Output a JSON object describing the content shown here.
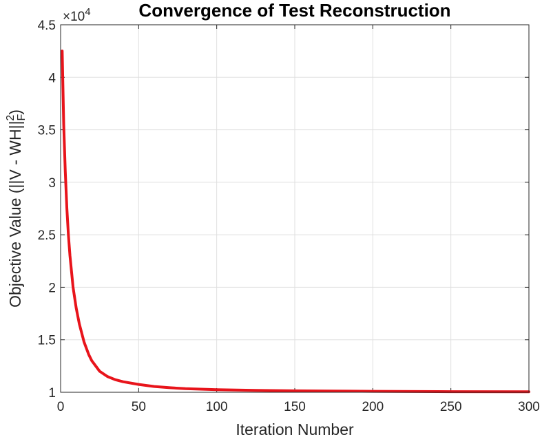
{
  "chart_data": {
    "type": "line",
    "title": "Convergence of Test Reconstruction",
    "xlabel": "Iteration Number",
    "ylabel": "Objective Value (||V - WH||",
    "ylabel_sub": "F",
    "ylabel_sup": "2",
    "ylabel_close": ")",
    "y_exponent_base": "×10",
    "y_exponent_power": "4",
    "xlim": [
      0,
      300
    ],
    "ylim": [
      10000,
      45000
    ],
    "x_ticks": [
      0,
      50,
      100,
      150,
      200,
      250,
      300
    ],
    "x_tick_labels": [
      "0",
      "50",
      "100",
      "150",
      "200",
      "250",
      "300"
    ],
    "y_ticks": [
      10000,
      15000,
      20000,
      25000,
      30000,
      35000,
      40000,
      45000
    ],
    "y_tick_labels": [
      "1",
      "1.5",
      "2",
      "2.5",
      "3",
      "3.5",
      "4",
      "4.5"
    ],
    "grid": true,
    "series": [
      {
        "color": "#e8141b",
        "x": [
          1,
          2,
          3,
          4,
          5,
          6,
          8,
          10,
          12,
          15,
          18,
          20,
          25,
          30,
          35,
          40,
          50,
          60,
          70,
          80,
          100,
          125,
          150,
          175,
          200,
          250,
          300
        ],
        "y": [
          42500,
          35500,
          31000,
          27500,
          25000,
          23000,
          20000,
          18000,
          16500,
          14800,
          13600,
          13000,
          12000,
          11500,
          11200,
          11000,
          10750,
          10550,
          10430,
          10350,
          10250,
          10180,
          10140,
          10110,
          10090,
          10060,
          10050
        ]
      }
    ]
  }
}
